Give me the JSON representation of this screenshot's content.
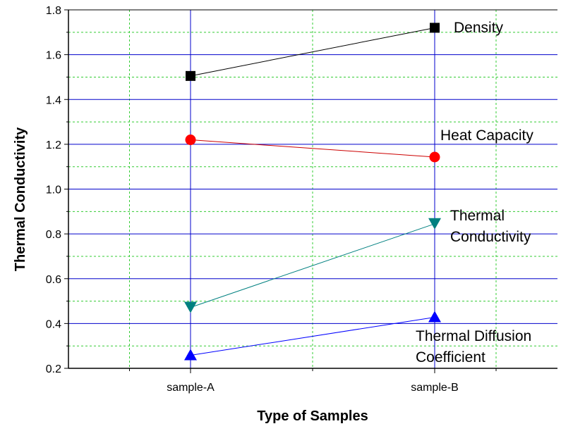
{
  "chart_data": {
    "type": "line",
    "xlabel": "Type of Samples",
    "ylabel": "Thermal Conductivity",
    "categories": [
      "sample-A",
      "sample-B"
    ],
    "ylim": [
      0.2,
      1.8
    ],
    "yticks": [
      "0.2",
      "0.4",
      "0.6",
      "0.8",
      "1.0",
      "1.2",
      "1.4",
      "1.6",
      "1.8"
    ],
    "grid": {
      "major": "on",
      "minor": "on",
      "major_color": "#0000cc",
      "minor_color": "#33cc33"
    },
    "series": [
      {
        "name": "Density",
        "label_lines": [
          "Density"
        ],
        "values": [
          1.505,
          1.72
        ],
        "color": "#000000",
        "marker": "square"
      },
      {
        "name": "Heat Capacity",
        "label_lines": [
          "Heat Capacity"
        ],
        "values": [
          1.22,
          1.143
        ],
        "color": "#ff0000",
        "line_color": "#cc0000",
        "marker": "circle"
      },
      {
        "name": "Thermal Conductivity",
        "label_lines": [
          "Thermal",
          "Conductivity"
        ],
        "values": [
          0.472,
          0.845
        ],
        "color": "#008080",
        "marker": "triangle-down"
      },
      {
        "name": "Thermal Diffusion Coefficient",
        "label_lines": [
          "Thermal Diffusion",
          "Coefficient"
        ],
        "values": [
          0.258,
          0.428
        ],
        "color": "#0000ff",
        "marker": "triangle-up"
      }
    ]
  }
}
